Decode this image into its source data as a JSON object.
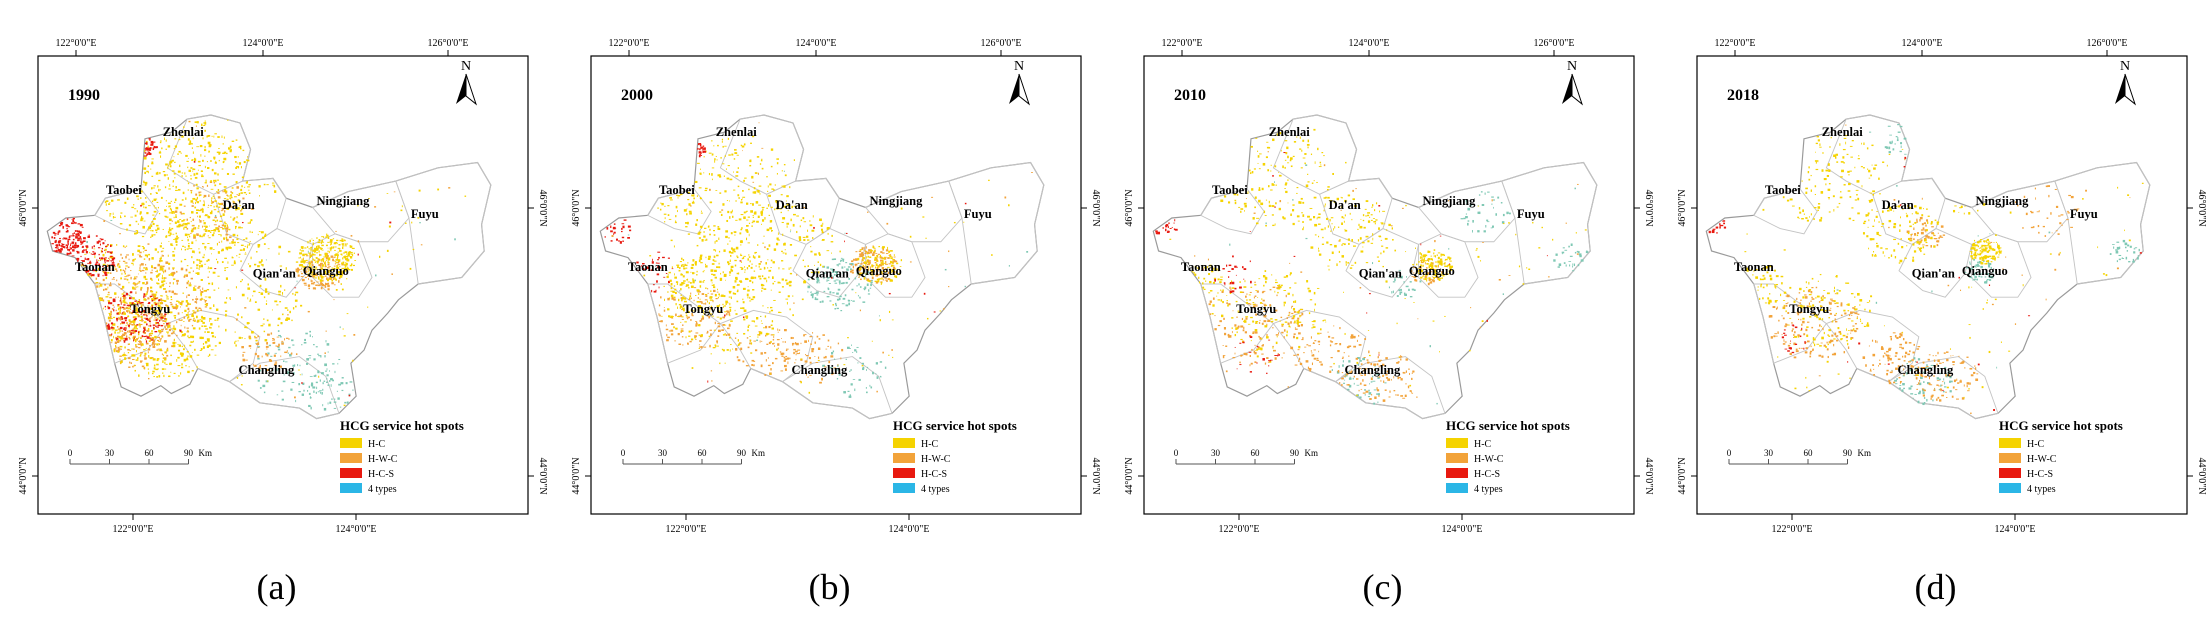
{
  "figure": {
    "panels": [
      {
        "id": "a",
        "year": "1990",
        "caption": "(a)"
      },
      {
        "id": "b",
        "year": "2000",
        "caption": "(b)"
      },
      {
        "id": "c",
        "year": "2010",
        "caption": "(c)"
      },
      {
        "id": "d",
        "year": "2018",
        "caption": "(d)"
      }
    ],
    "axis_labels": {
      "top": [
        "122°0'0\"E",
        "124°0'0\"E",
        "126°0'0\"E"
      ],
      "bottom": [
        "122°0'0\"E",
        "124°0'0\"E"
      ],
      "left": [
        "46°0'0\"N",
        "44°0'0\"N"
      ],
      "right": [
        "46°0'0\"N",
        "44°0'0\"N"
      ]
    },
    "north_label": "N",
    "scale_bar": {
      "ticks": [
        "0",
        "30",
        "60",
        "90"
      ],
      "unit": "Km"
    },
    "legend": {
      "title": "HCG service hot spots",
      "items": [
        {
          "label": "H-C",
          "color": "#f5d300"
        },
        {
          "label": "H-W-C",
          "color": "#f2a33a"
        },
        {
          "label": "H-C-S",
          "color": "#e8190f"
        },
        {
          "label": "4 types",
          "color": "#2bb6e6"
        }
      ]
    },
    "regions": [
      "Zhenlai",
      "Taobei",
      "Da'an",
      "Ningjiang",
      "Fuyu",
      "Taonan",
      "Qian'an",
      "Qianguo",
      "Tongyu",
      "Changling"
    ],
    "colors": {
      "hc": "#f5d300",
      "hwc": "#f2a33a",
      "hcs": "#e8190f",
      "four": "#2bb6e6",
      "teal": "#7fc8b4",
      "boundary": "#9a9a9a"
    }
  }
}
